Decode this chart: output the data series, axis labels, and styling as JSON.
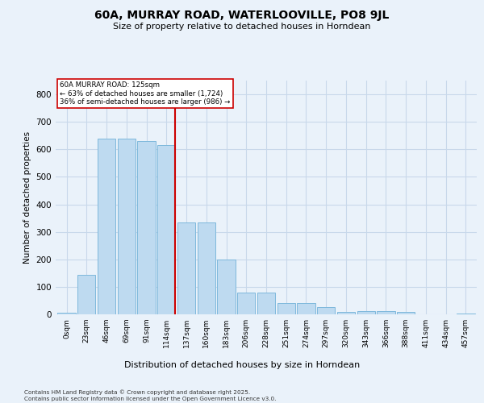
{
  "title": "60A, MURRAY ROAD, WATERLOOVILLE, PO8 9JL",
  "subtitle": "Size of property relative to detached houses in Horndean",
  "xlabel": "Distribution of detached houses by size in Horndean",
  "ylabel": "Number of detached properties",
  "footer": "Contains HM Land Registry data © Crown copyright and database right 2025.\nContains public sector information licensed under the Open Government Licence v3.0.",
  "categories": [
    "0sqm",
    "23sqm",
    "46sqm",
    "69sqm",
    "91sqm",
    "114sqm",
    "137sqm",
    "160sqm",
    "183sqm",
    "206sqm",
    "228sqm",
    "251sqm",
    "274sqm",
    "297sqm",
    "320sqm",
    "343sqm",
    "366sqm",
    "388sqm",
    "411sqm",
    "434sqm",
    "457sqm"
  ],
  "bar_values": [
    5,
    145,
    640,
    640,
    630,
    615,
    335,
    335,
    200,
    80,
    80,
    42,
    42,
    25,
    10,
    12,
    12,
    8,
    0,
    0,
    3
  ],
  "bar_color": "#BEDAF0",
  "bar_edge_color": "#7EB8DC",
  "grid_color": "#C8D8EA",
  "bg_color": "#EAF2FA",
  "vline_color": "#CC0000",
  "vline_index": 5.42,
  "annotation_text": "60A MURRAY ROAD: 125sqm\n← 63% of detached houses are smaller (1,724)\n36% of semi-detached houses are larger (986) →",
  "annotation_box_color": "#CC0000",
  "ylim": [
    0,
    850
  ],
  "yticks": [
    0,
    100,
    200,
    300,
    400,
    500,
    600,
    700,
    800
  ]
}
